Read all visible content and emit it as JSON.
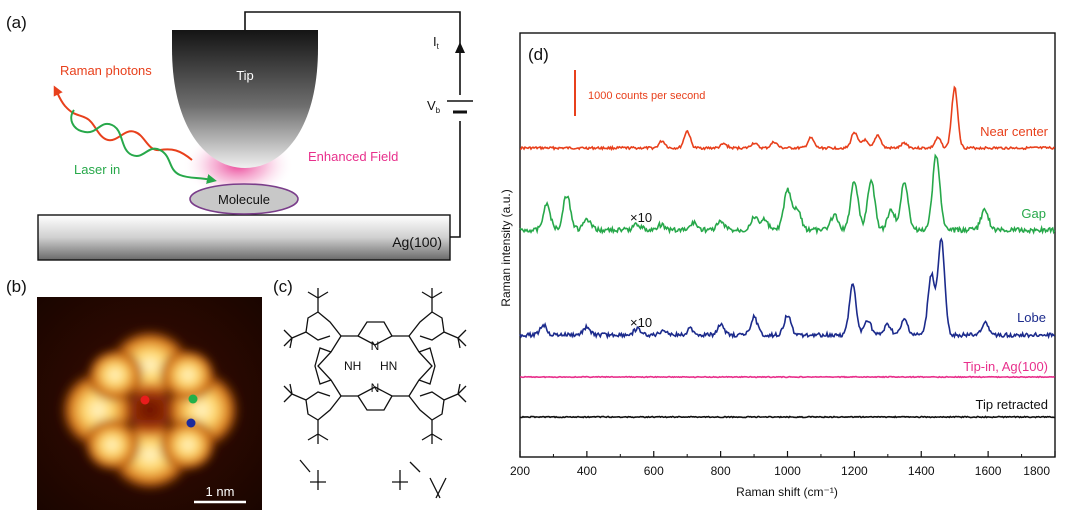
{
  "panel_a": {
    "label": "(a)",
    "tip_label": "Tip",
    "raman_label": "Raman photons",
    "laser_label": "Laser in",
    "field_label": "Enhanced Field",
    "molecule_label": "Molecule",
    "substrate_label": "Ag(100)",
    "current_label": "I",
    "current_sub": "t",
    "voltage_label": "V",
    "voltage_sub": "b",
    "colors": {
      "raman": "#e8401c",
      "laser": "#27a84a",
      "field": "#e8308c"
    }
  },
  "panel_b": {
    "label": "(b)",
    "scalebar_label": "1 nm",
    "markers": [
      "red",
      "green",
      "blue"
    ]
  },
  "panel_c": {
    "label": "(c)",
    "atom_n_top": "N",
    "atom_n_bottom": "N",
    "atom_nh": "NH",
    "atom_hn": "HN"
  },
  "panel_d": {
    "label": "(d)"
  },
  "chart_data": {
    "type": "line",
    "xlabel": "Raman shift (cm⁻¹)",
    "ylabel": "Raman intensity (a.u.)",
    "xlim": [
      200,
      1800
    ],
    "xticks": [
      "200",
      "400",
      "600",
      "800",
      "1000",
      "1200",
      "1400",
      "1600",
      "1800"
    ],
    "scale_bar_label": "1000 counts per second",
    "scale_bar_color": "#e8401c",
    "series": [
      {
        "name": "Near center",
        "color": "#e8401c",
        "multiplier": "",
        "peaks": [
          [
            625,
            0.07
          ],
          [
            700,
            0.17
          ],
          [
            810,
            0.04
          ],
          [
            900,
            0.05
          ],
          [
            960,
            0.06
          ],
          [
            1070,
            0.1
          ],
          [
            1200,
            0.16
          ],
          [
            1230,
            0.08
          ],
          [
            1270,
            0.13
          ],
          [
            1350,
            0.05
          ],
          [
            1450,
            0.1
          ],
          [
            1500,
            0.6
          ]
        ]
      },
      {
        "name": "Gap",
        "color": "#27a84a",
        "multiplier": "×10",
        "peaks": [
          [
            280,
            0.25
          ],
          [
            340,
            0.35
          ],
          [
            400,
            0.1
          ],
          [
            550,
            0.06
          ],
          [
            620,
            0.05
          ],
          [
            720,
            0.07
          ],
          [
            800,
            0.08
          ],
          [
            900,
            0.12
          ],
          [
            930,
            0.1
          ],
          [
            1000,
            0.4
          ],
          [
            1030,
            0.2
          ],
          [
            1140,
            0.15
          ],
          [
            1200,
            0.5
          ],
          [
            1250,
            0.5
          ],
          [
            1310,
            0.2
          ],
          [
            1350,
            0.48
          ],
          [
            1445,
            0.75
          ],
          [
            1590,
            0.2
          ]
        ]
      },
      {
        "name": "Lobe",
        "color": "#1c2b8c",
        "multiplier": "×10",
        "peaks": [
          [
            270,
            0.1
          ],
          [
            400,
            0.08
          ],
          [
            550,
            0.06
          ],
          [
            630,
            0.05
          ],
          [
            710,
            0.06
          ],
          [
            800,
            0.1
          ],
          [
            900,
            0.18
          ],
          [
            1000,
            0.2
          ],
          [
            1195,
            0.5
          ],
          [
            1240,
            0.15
          ],
          [
            1300,
            0.1
          ],
          [
            1350,
            0.15
          ],
          [
            1430,
            0.6
          ],
          [
            1460,
            0.95
          ],
          [
            1590,
            0.12
          ]
        ]
      },
      {
        "name": "Tip-in, Ag(100)",
        "color": "#e8308c",
        "multiplier": "",
        "peaks": []
      },
      {
        "name": "Tip retracted",
        "color": "#111111",
        "multiplier": "",
        "peaks": []
      }
    ]
  }
}
